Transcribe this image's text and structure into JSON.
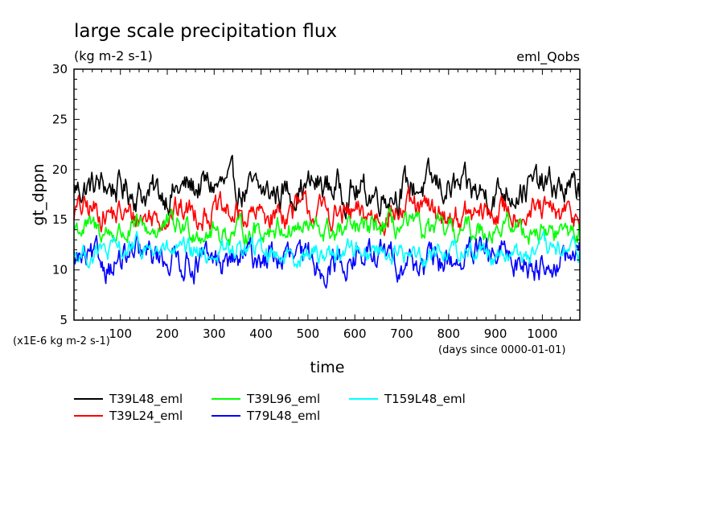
{
  "chart_data": {
    "type": "line",
    "title": "large scale precipitation flux",
    "units": "(kg m-2 s-1)",
    "experiment": "eml_Qobs",
    "ylabel": "gt_dppn",
    "xlabel": "time",
    "x_units": "(days since 0000-01-01)",
    "y_scale_note": "(x1E-6 kg m-2 s-1)",
    "xlim": [
      1,
      1080
    ],
    "ylim": [
      5,
      30
    ],
    "x_ticks": [
      100,
      200,
      300,
      400,
      500,
      600,
      700,
      800,
      900,
      1000
    ],
    "y_ticks": [
      5,
      10,
      15,
      20,
      25,
      30
    ],
    "grid": false,
    "legend_position": "bottom",
    "series": [
      {
        "name": "T39L48_eml",
        "color": "#000000",
        "mean": 18.0,
        "amplitude": 1.5,
        "x": [
          1,
          1080
        ],
        "y": [
          18.0,
          18.0
        ]
      },
      {
        "name": "T39L24_eml",
        "color": "#ff0000",
        "mean": 15.6,
        "amplitude": 1.3,
        "x": [
          1,
          1080
        ],
        "y": [
          15.6,
          15.6
        ]
      },
      {
        "name": "T39L96_eml",
        "color": "#00ff00",
        "mean": 14.0,
        "amplitude": 1.1,
        "x": [
          1,
          1080
        ],
        "y": [
          14.0,
          14.0
        ]
      },
      {
        "name": "T79L48_eml",
        "color": "#0000ff",
        "mean": 11.0,
        "amplitude": 1.4,
        "x": [
          1,
          1080
        ],
        "y": [
          11.0,
          11.0
        ]
      },
      {
        "name": "T159L48_eml",
        "color": "#00ffff",
        "mean": 11.8,
        "amplitude": 1.0,
        "x": [
          1,
          1080
        ],
        "y": [
          11.8,
          11.8
        ]
      }
    ]
  }
}
